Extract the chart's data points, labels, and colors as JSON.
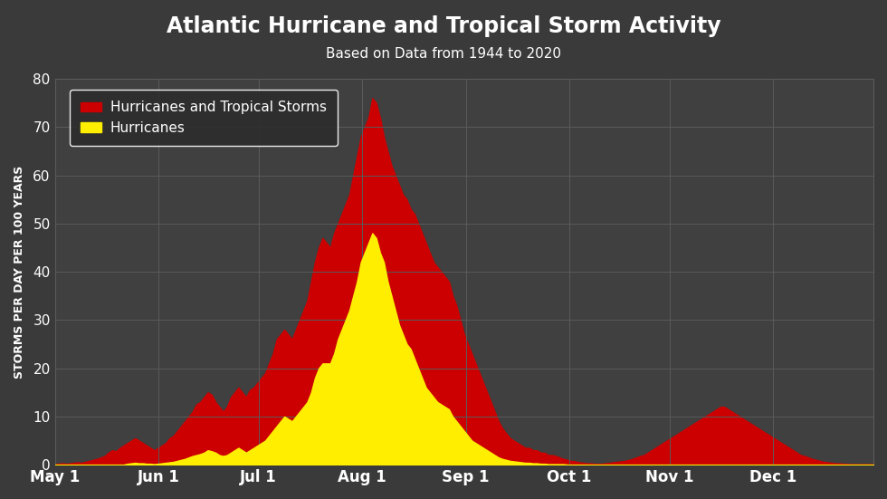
{
  "title": "Atlantic Hurricane and Tropical Storm Activity",
  "subtitle": "Based on Data from 1944 to 2020",
  "ylabel": "STORMS PER DAY PER 100 YEARS",
  "background_color": "#3a3a3a",
  "plot_bg_color": "#404040",
  "grid_color": "#5a5a5a",
  "text_color": "#ffffff",
  "red_color": "#cc0000",
  "yellow_color": "#ffee00",
  "ylim": [
    0,
    80
  ],
  "yticks": [
    0,
    10,
    20,
    30,
    40,
    50,
    60,
    70,
    80
  ],
  "month_labels": [
    "May 1",
    "Jun 1",
    "Jul 1",
    "Aug 1",
    "Sep 1",
    "Oct 1",
    "Nov 1",
    "Dec 1"
  ],
  "month_days_from_may1": [
    0,
    31,
    61,
    92,
    123,
    154,
    184,
    215
  ],
  "total_days": 245,
  "total_storms": [
    0.2,
    0.2,
    0.3,
    0.2,
    0.3,
    0.4,
    0.5,
    0.4,
    0.6,
    0.8,
    1.0,
    1.2,
    1.5,
    1.8,
    2.5,
    3.0,
    2.8,
    3.5,
    4.0,
    4.5,
    5.0,
    5.5,
    5.0,
    4.5,
    4.0,
    3.5,
    3.0,
    3.5,
    4.0,
    4.5,
    5.5,
    6.0,
    7.0,
    8.0,
    9.0,
    10.0,
    11.0,
    12.5,
    13.0,
    14.0,
    15.0,
    14.5,
    13.0,
    12.0,
    11.0,
    12.0,
    14.0,
    15.0,
    16.0,
    15.0,
    14.0,
    15.5,
    16.0,
    17.0,
    18.0,
    19.0,
    21.0,
    23.0,
    26.0,
    27.0,
    28.0,
    27.0,
    26.0,
    28.0,
    30.0,
    32.0,
    34.0,
    38.0,
    42.0,
    45.0,
    47.0,
    46.0,
    45.0,
    48.0,
    50.0,
    52.0,
    54.0,
    56.0,
    60.0,
    64.0,
    68.0,
    70.0,
    72.0,
    76.0,
    75.0,
    72.0,
    68.0,
    65.0,
    62.0,
    60.0,
    58.0,
    56.0,
    55.0,
    53.0,
    52.0,
    50.0,
    48.0,
    46.0,
    44.0,
    42.0,
    41.0,
    40.0,
    39.0,
    38.0,
    35.0,
    33.0,
    30.0,
    27.0,
    25.0,
    23.0,
    21.0,
    19.0,
    17.0,
    15.0,
    13.0,
    11.0,
    9.0,
    7.5,
    6.5,
    5.5,
    5.0,
    4.5,
    4.0,
    3.5,
    3.5,
    3.0,
    3.0,
    2.5,
    2.5,
    2.0,
    2.0,
    1.8,
    1.5,
    1.2,
    1.0,
    0.8,
    0.7,
    0.5,
    0.4,
    0.3,
    0.3,
    0.2,
    0.2,
    0.2,
    0.3,
    0.4,
    0.5,
    0.6,
    0.7,
    0.8,
    1.0,
    1.2,
    1.5,
    1.8,
    2.0,
    2.5,
    3.0,
    3.5,
    4.0,
    4.5,
    5.0,
    5.5,
    6.0,
    6.5,
    7.0,
    7.5,
    8.0,
    8.5,
    9.0,
    9.5,
    10.0,
    10.5,
    11.0,
    11.5,
    12.0,
    12.0,
    11.5,
    11.0,
    10.5,
    10.0,
    9.5,
    9.0,
    8.5,
    8.0,
    7.5,
    7.0,
    6.5,
    6.0,
    5.5,
    5.0,
    4.5,
    4.0,
    3.5,
    3.0,
    2.5,
    2.0,
    1.8,
    1.5,
    1.2,
    1.0,
    0.8,
    0.6,
    0.5,
    0.4,
    0.3,
    0.3,
    0.2,
    0.2,
    0.1,
    0.1,
    0.1,
    0.1,
    0.1,
    0.1,
    0.1
  ],
  "hurricanes": [
    0.0,
    0.0,
    0.0,
    0.0,
    0.0,
    0.0,
    0.0,
    0.0,
    0.0,
    0.0,
    0.0,
    0.0,
    0.0,
    0.0,
    0.0,
    0.0,
    0.0,
    0.0,
    0.0,
    0.2,
    0.3,
    0.4,
    0.3,
    0.3,
    0.2,
    0.2,
    0.1,
    0.2,
    0.3,
    0.4,
    0.5,
    0.6,
    0.8,
    1.0,
    1.2,
    1.5,
    1.8,
    2.0,
    2.2,
    2.5,
    3.0,
    2.8,
    2.5,
    2.0,
    1.8,
    2.0,
    2.5,
    3.0,
    3.5,
    3.0,
    2.5,
    3.0,
    3.5,
    4.0,
    4.5,
    5.0,
    6.0,
    7.0,
    8.0,
    9.0,
    10.0,
    9.5,
    9.0,
    10.0,
    11.0,
    12.0,
    13.0,
    15.0,
    18.0,
    20.0,
    21.0,
    21.0,
    21.0,
    23.0,
    26.0,
    28.0,
    30.0,
    32.0,
    35.0,
    38.0,
    42.0,
    44.0,
    46.0,
    48.0,
    47.0,
    44.0,
    42.0,
    38.0,
    35.0,
    32.0,
    29.0,
    27.0,
    25.0,
    24.0,
    22.0,
    20.0,
    18.0,
    16.0,
    15.0,
    14.0,
    13.0,
    12.5,
    12.0,
    11.5,
    10.0,
    9.0,
    8.0,
    7.0,
    6.0,
    5.0,
    4.5,
    4.0,
    3.5,
    3.0,
    2.5,
    2.0,
    1.5,
    1.2,
    1.0,
    0.8,
    0.7,
    0.6,
    0.5,
    0.4,
    0.4,
    0.3,
    0.3,
    0.2,
    0.2,
    0.1,
    0.1,
    0.1,
    0.1,
    0.1,
    0.0,
    0.0,
    0.0,
    0.0,
    0.0,
    0.0,
    0.0,
    0.0,
    0.0,
    0.0,
    0.0,
    0.0,
    0.0,
    0.0,
    0.0,
    0.0,
    0.0,
    0.0,
    0.0,
    0.0,
    0.0,
    0.0,
    0.0,
    0.0,
    0.0,
    0.0,
    0.0,
    0.0,
    0.0,
    0.0,
    0.0,
    0.0,
    0.0,
    0.0,
    0.0,
    0.0,
    0.0,
    0.0,
    0.0,
    0.0,
    0.0,
    0.0,
    0.0,
    0.0,
    0.0,
    0.0,
    0.0,
    0.0,
    0.0,
    0.0,
    0.0,
    0.0,
    0.0,
    0.0,
    0.0,
    0.0,
    0.0,
    0.0,
    0.0,
    0.0,
    0.0,
    0.0,
    0.0,
    0.0,
    0.0,
    0.0,
    0.0,
    0.0,
    0.0,
    0.0,
    0.0,
    0.0,
    0.0,
    0.0,
    0.0,
    0.0,
    0.0,
    0.0,
    0.0,
    0.0,
    0.0
  ]
}
